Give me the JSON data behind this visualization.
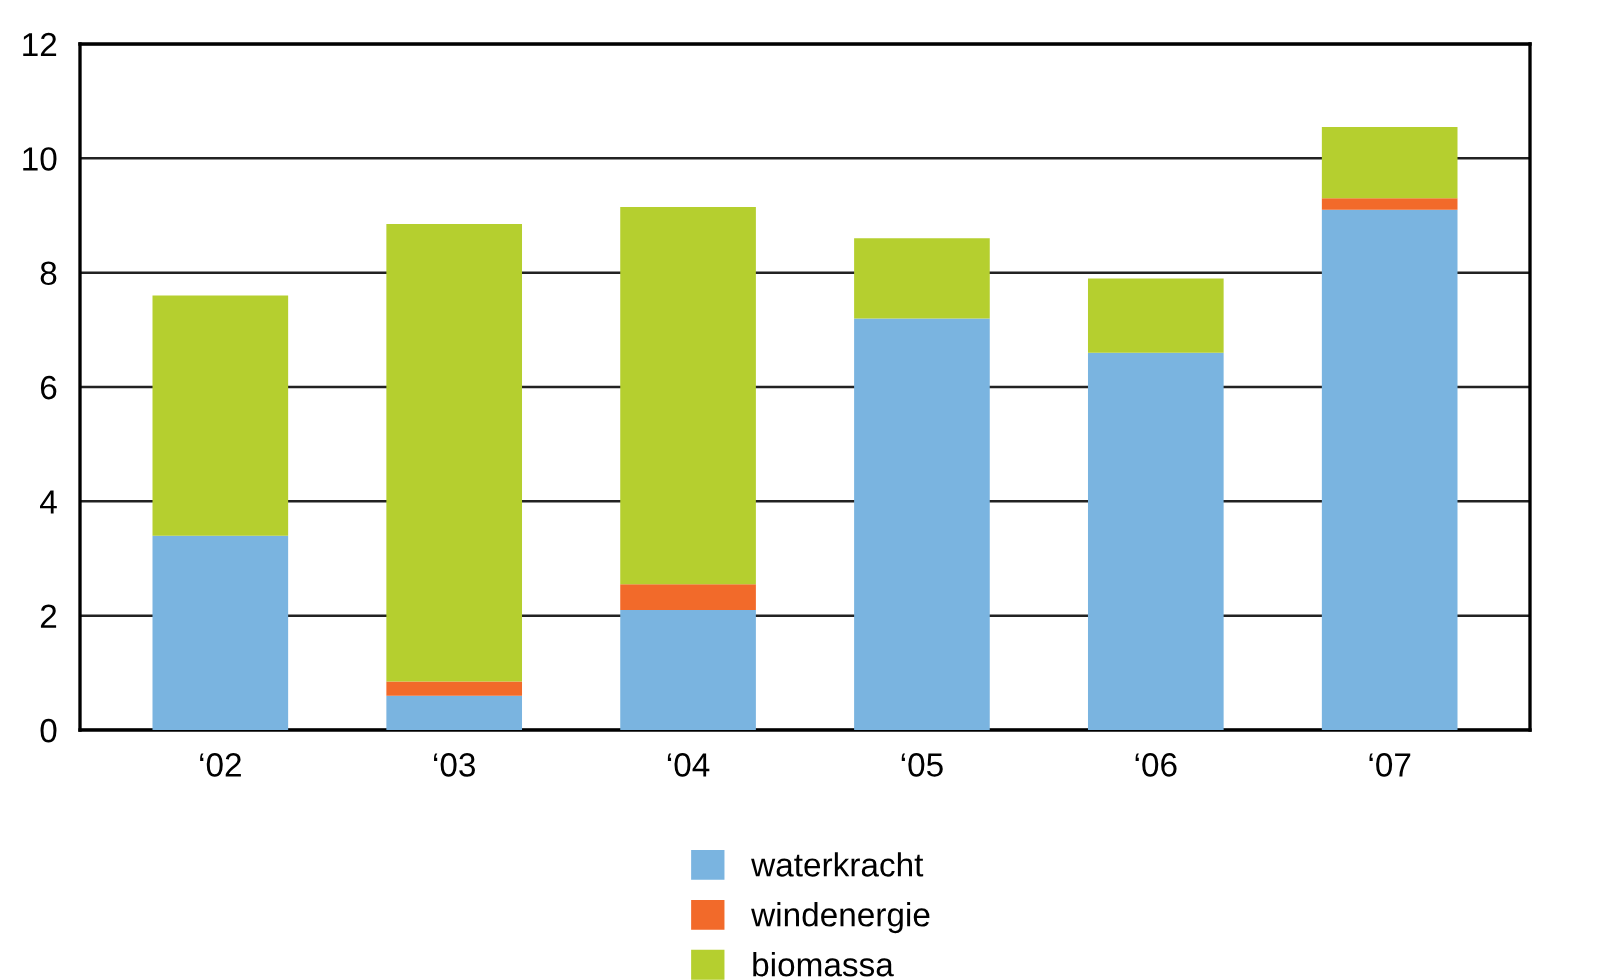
{
  "chart_data": {
    "type": "bar",
    "stacked": true,
    "categories": [
      "‘02",
      "‘03",
      "‘04",
      "‘05",
      "‘06",
      "‘07"
    ],
    "series": [
      {
        "name": "waterkracht",
        "color": "#7ab4e0",
        "values": [
          3.4,
          0.6,
          2.1,
          7.2,
          6.6,
          9.1
        ]
      },
      {
        "name": "windenergie",
        "color": "#f26a2a",
        "values": [
          0,
          0.25,
          0.45,
          0,
          0,
          0.2
        ]
      },
      {
        "name": "biomassa",
        "color": "#b5cf2f",
        "values": [
          4.2,
          8.0,
          6.6,
          1.4,
          1.3,
          1.25
        ]
      }
    ],
    "ylim": [
      0,
      12
    ],
    "yticks": [
      0,
      2,
      4,
      6,
      8,
      10,
      12
    ],
    "grid": "y",
    "legend": "bottom"
  }
}
